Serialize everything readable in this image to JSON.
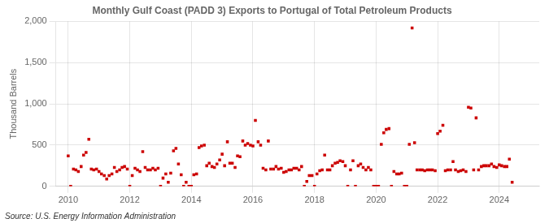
{
  "chart_data": {
    "type": "scatter",
    "title": "Monthly Gulf Coast (PADD 3) Exports to Portugal of Total Petroleum Products",
    "y_label": "Thousand Barrels",
    "annotations": [
      "Source: U.S. Energy Information Administration"
    ],
    "color": "#cc0000",
    "marker": "square",
    "grid": true,
    "xlim": [
      2009.6,
      2025.3
    ],
    "xticks": [
      2010,
      2012,
      2014,
      2016,
      2018,
      2020,
      2022,
      2024
    ],
    "ylim": [
      0,
      2000
    ],
    "yticks": [
      0,
      500,
      {
        "value": 1000,
        "label": "1,000"
      },
      {
        "value": 1500,
        "label": "1,500"
      },
      {
        "value": 2000,
        "label": "2,000"
      }
    ],
    "x": [
      2010.0,
      2010.08,
      2010.17,
      2010.25,
      2010.33,
      2010.42,
      2010.5,
      2010.58,
      2010.67,
      2010.75,
      2010.83,
      2010.92,
      2011.0,
      2011.08,
      2011.17,
      2011.25,
      2011.33,
      2011.42,
      2011.5,
      2011.58,
      2011.67,
      2011.75,
      2011.83,
      2011.92,
      2012.0,
      2012.08,
      2012.17,
      2012.25,
      2012.33,
      2012.42,
      2012.5,
      2012.58,
      2012.67,
      2012.75,
      2012.83,
      2012.92,
      2013.0,
      2013.08,
      2013.17,
      2013.25,
      2013.33,
      2013.42,
      2013.5,
      2013.58,
      2013.67,
      2013.75,
      2013.83,
      2013.92,
      2014.0,
      2014.08,
      2014.17,
      2014.25,
      2014.33,
      2014.42,
      2014.5,
      2014.58,
      2014.67,
      2014.75,
      2014.83,
      2014.92,
      2015.0,
      2015.08,
      2015.17,
      2015.25,
      2015.33,
      2015.42,
      2015.5,
      2015.58,
      2015.67,
      2015.75,
      2015.83,
      2015.92,
      2016.0,
      2016.08,
      2016.17,
      2016.25,
      2016.33,
      2016.42,
      2016.5,
      2016.58,
      2016.67,
      2016.75,
      2016.83,
      2016.92,
      2017.0,
      2017.08,
      2017.17,
      2017.25,
      2017.33,
      2017.42,
      2017.5,
      2017.58,
      2017.67,
      2017.75,
      2017.83,
      2017.92,
      2018.0,
      2018.08,
      2018.17,
      2018.25,
      2018.33,
      2018.42,
      2018.5,
      2018.58,
      2018.67,
      2018.75,
      2018.83,
      2018.92,
      2019.0,
      2019.08,
      2019.17,
      2019.25,
      2019.33,
      2019.42,
      2019.5,
      2019.58,
      2019.67,
      2019.75,
      2019.83,
      2019.92,
      2020.0,
      2020.08,
      2020.17,
      2020.25,
      2020.33,
      2020.42,
      2020.5,
      2020.58,
      2020.67,
      2020.75,
      2020.83,
      2020.92,
      2021.0,
      2021.08,
      2021.17,
      2021.25,
      2021.33,
      2021.42,
      2021.5,
      2021.58,
      2021.67,
      2021.75,
      2021.83,
      2021.92,
      2022.0,
      2022.08,
      2022.17,
      2022.25,
      2022.33,
      2022.42,
      2022.5,
      2022.58,
      2022.67,
      2022.75,
      2022.83,
      2022.92,
      2023.0,
      2023.08,
      2023.17,
      2023.25,
      2023.33,
      2023.42,
      2023.5,
      2023.58,
      2023.67,
      2023.75,
      2023.83,
      2023.92,
      2024.0,
      2024.08,
      2024.17,
      2024.25,
      2024.33,
      2024.42
    ],
    "values": [
      370,
      0,
      210,
      200,
      180,
      240,
      380,
      410,
      570,
      210,
      200,
      210,
      180,
      150,
      130,
      90,
      130,
      150,
      230,
      180,
      200,
      230,
      240,
      210,
      0,
      130,
      220,
      200,
      180,
      420,
      230,
      200,
      200,
      220,
      200,
      220,
      0,
      100,
      150,
      50,
      160,
      430,
      460,
      270,
      140,
      0,
      50,
      0,
      0,
      140,
      150,
      470,
      490,
      500,
      250,
      280,
      240,
      230,
      270,
      320,
      390,
      250,
      540,
      280,
      280,
      230,
      370,
      360,
      550,
      500,
      520,
      500,
      490,
      800,
      540,
      500,
      220,
      200,
      550,
      210,
      210,
      240,
      210,
      220,
      170,
      180,
      200,
      200,
      220,
      220,
      200,
      240,
      0,
      60,
      130,
      130,
      0,
      150,
      190,
      200,
      380,
      200,
      200,
      250,
      280,
      290,
      310,
      300,
      250,
      0,
      200,
      310,
      0,
      250,
      270,
      230,
      200,
      230,
      200,
      0,
      0,
      0,
      510,
      650,
      690,
      700,
      0,
      180,
      150,
      150,
      160,
      0,
      0,
      510,
      1920,
      530,
      200,
      200,
      200,
      190,
      200,
      200,
      200,
      190,
      640,
      670,
      740,
      190,
      200,
      200,
      300,
      200,
      180,
      190,
      200,
      180,
      960,
      950,
      200,
      830,
      200,
      240,
      250,
      250,
      250,
      270,
      240,
      230,
      260,
      250,
      240,
      240,
      330,
      50
    ]
  }
}
